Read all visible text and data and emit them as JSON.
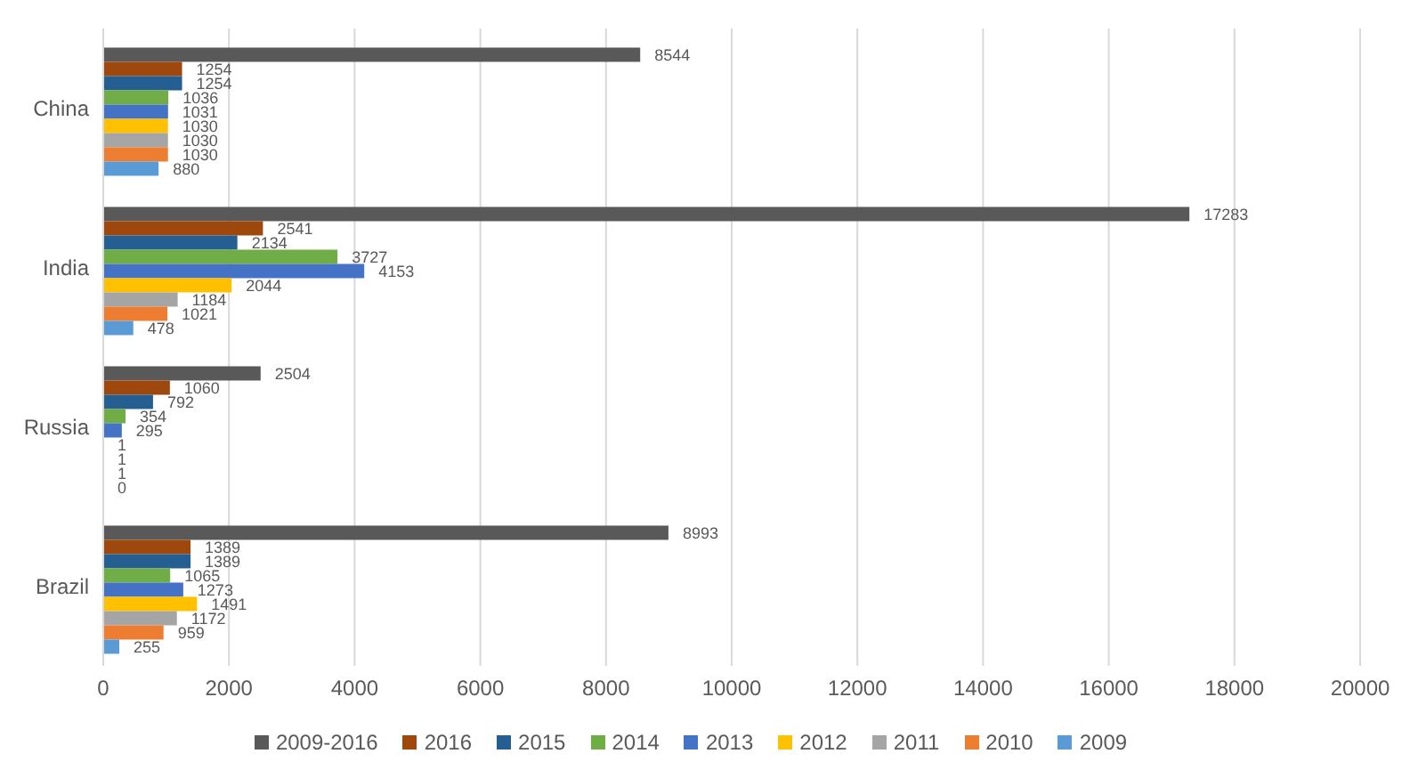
{
  "chart_data": {
    "type": "bar",
    "orientation": "horizontal",
    "categories": [
      "China",
      "India",
      "Russia",
      "Brazil"
    ],
    "series": [
      {
        "name": "2009-2016",
        "color": "#595959",
        "values": [
          8544,
          17283,
          2504,
          8993
        ]
      },
      {
        "name": "2016",
        "color": "#9e480e",
        "values": [
          1254,
          2541,
          1060,
          1389
        ]
      },
      {
        "name": "2015",
        "color": "#255e91",
        "values": [
          1254,
          2134,
          792,
          1389
        ]
      },
      {
        "name": "2014",
        "color": "#70ad47",
        "values": [
          1036,
          3727,
          354,
          1065
        ]
      },
      {
        "name": "2013",
        "color": "#4472c4",
        "values": [
          1031,
          4153,
          295,
          1273
        ]
      },
      {
        "name": "2012",
        "color": "#ffc000",
        "values": [
          1030,
          2044,
          1,
          1491
        ]
      },
      {
        "name": "2011",
        "color": "#a5a5a5",
        "values": [
          1030,
          1184,
          1,
          1172
        ]
      },
      {
        "name": "2010",
        "color": "#ed7d31",
        "values": [
          1030,
          1021,
          1,
          959
        ]
      },
      {
        "name": "2009",
        "color": "#5b9bd5",
        "values": [
          880,
          478,
          0,
          255
        ]
      }
    ],
    "xlim": [
      0,
      20000
    ],
    "xticks": [
      0,
      2000,
      4000,
      6000,
      8000,
      10000,
      12000,
      14000,
      16000,
      18000,
      20000
    ],
    "grid": "x",
    "legend": "bottom",
    "data_labels": true
  }
}
